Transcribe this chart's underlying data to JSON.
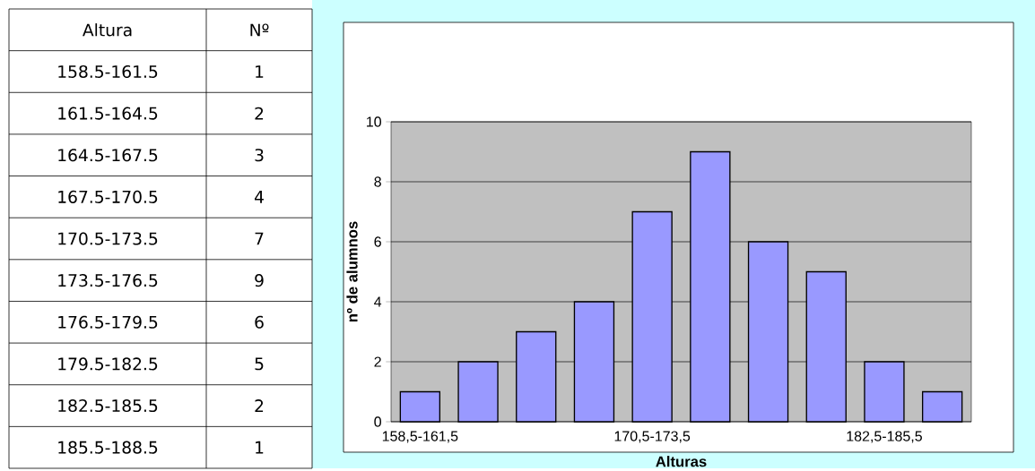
{
  "chart_data": {
    "type": "bar",
    "xlabel": "Alturas",
    "ylabel": "nº de alumnos",
    "categories": [
      "158,5-161,5",
      null,
      null,
      null,
      "170,5-173,5",
      null,
      null,
      null,
      "182,5-185,5",
      null
    ],
    "values": [
      1,
      2,
      3,
      4,
      7,
      9,
      6,
      5,
      2,
      1
    ],
    "color": "#9999ff",
    "ylim": [
      0,
      10
    ],
    "yticks": [
      0,
      2,
      4,
      6,
      8,
      10
    ],
    "grid": "y",
    "annotations": [
      "Altura",
      "Nº",
      "158.5-161.5",
      "1",
      "161.5-164.5",
      "2",
      "164.5-167.5",
      "3",
      "167.5-170.5",
      "4",
      "170.5-173.5",
      "7",
      "173.5-176.5",
      "9",
      "176.5-179.5",
      "6",
      "179.5-182.5",
      "5",
      "182.5-185.5",
      "2",
      "185.5-188.5",
      "1"
    ]
  }
}
